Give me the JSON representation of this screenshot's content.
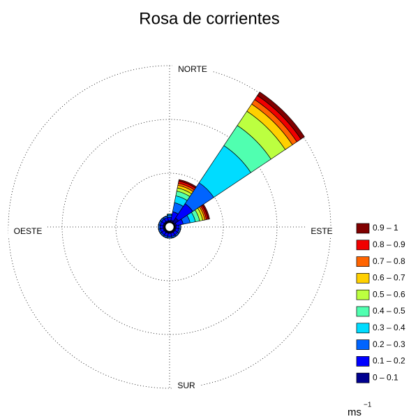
{
  "chart_data": {
    "type": "rose",
    "title": "Rosa de corrientes",
    "direction_labels": [
      "NORTE",
      "ESTE",
      "SUR",
      "OESTE"
    ],
    "legend_title": "ms",
    "legend_title_sup": "−1",
    "x": [
      0,
      22.5,
      45,
      67.5,
      90,
      112.5,
      135,
      157.5,
      180,
      202.5,
      225,
      247.5,
      270,
      292.5,
      315,
      337.5
    ],
    "rlim": [
      0,
      3
    ],
    "rticks": [
      1,
      2,
      3
    ],
    "grid": true,
    "series": [
      {
        "name": "0 – 0.1",
        "color": "#00008f",
        "values": [
          0.12,
          0.13,
          0.2,
          0.13,
          0.12,
          0.12,
          0.12,
          0.12,
          0.12,
          0.12,
          0.12,
          0.12,
          0.12,
          0.12,
          0.12,
          0.12
        ]
      },
      {
        "name": "0.1 – 0.2",
        "color": "#0000ff",
        "values": [
          0.06,
          0.16,
          0.32,
          0.13,
          0.06,
          0.06,
          0.06,
          0.06,
          0.06,
          0.06,
          0.06,
          0.06,
          0.06,
          0.06,
          0.06,
          0.06
        ]
      },
      {
        "name": "0.2 – 0.3",
        "color": "#0064ff",
        "values": [
          0.04,
          0.17,
          0.47,
          0.13,
          0.03,
          0.03,
          0.03,
          0.03,
          0.03,
          0.03,
          0.03,
          0.03,
          0.03,
          0.03,
          0.03,
          0.03
        ]
      },
      {
        "name": "0.3 – 0.4",
        "color": "#00dcff",
        "values": [
          0.02,
          0.13,
          0.83,
          0.1,
          0,
          0,
          0,
          0,
          0,
          0,
          0,
          0,
          0,
          0,
          0,
          0
        ]
      },
      {
        "name": "0.4 – 0.5",
        "color": "#50ffb0",
        "values": [
          0,
          0.09,
          0.45,
          0.08,
          0,
          0,
          0,
          0,
          0,
          0,
          0,
          0,
          0,
          0,
          0,
          0
        ]
      },
      {
        "name": "0.5 – 0.6",
        "color": "#bcff40",
        "values": [
          0,
          0.06,
          0.32,
          0.06,
          0,
          0,
          0,
          0,
          0,
          0,
          0,
          0,
          0,
          0,
          0,
          0
        ]
      },
      {
        "name": "0.6 – 0.7",
        "color": "#ffd000",
        "values": [
          0,
          0.05,
          0.16,
          0.04,
          0,
          0,
          0,
          0,
          0,
          0,
          0,
          0,
          0,
          0,
          0,
          0
        ]
      },
      {
        "name": "0.7 – 0.8",
        "color": "#ff6400",
        "values": [
          0,
          0.04,
          0.1,
          0.03,
          0,
          0,
          0,
          0,
          0,
          0,
          0,
          0,
          0,
          0,
          0,
          0
        ]
      },
      {
        "name": "0.8 – 0.9",
        "color": "#f00000",
        "values": [
          0,
          0.04,
          0.09,
          0.03,
          0,
          0,
          0,
          0,
          0,
          0,
          0,
          0,
          0,
          0,
          0,
          0
        ]
      },
      {
        "name": "0.9 – 1",
        "color": "#800000",
        "values": [
          0,
          0.03,
          0.08,
          0.03,
          0,
          0,
          0,
          0,
          0,
          0,
          0,
          0,
          0,
          0,
          0,
          0
        ]
      }
    ]
  }
}
